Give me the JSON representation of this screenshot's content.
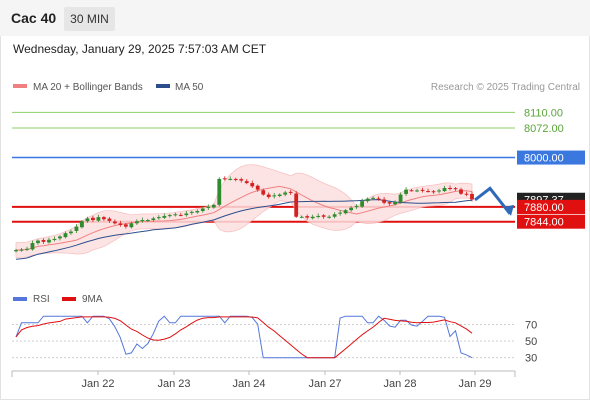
{
  "header": {
    "instrument": "Cac 40",
    "timeframe": "30 MIN",
    "timestamp": "Wednesday, January 29, 2025 7:57:03 AM CET"
  },
  "legend": {
    "ma20_label": "MA 20 + Bollinger Bands",
    "ma50_label": "MA 50",
    "credit": "Research © 2025 Trading Central",
    "rsi_label": "RSI",
    "ma9_label": "9MA"
  },
  "colors": {
    "candle_up": "#2e8b2e",
    "candle_down": "#d42020",
    "ma20": "#f08080",
    "ma50": "#2c4f8c",
    "bollinger_fill": "#fde0e0",
    "support": "#e01010",
    "resistance_blue": "#3a78e0",
    "target_green": "#8ccf6a",
    "last_price_bg": "#222222",
    "forecast_arrow": "#2f6ab8",
    "rsi": "#5577dd",
    "rsi_ma9": "#e01010"
  },
  "chart_data": [
    {
      "type": "candlestick",
      "title": "",
      "x_ticks": [
        "Jan 22",
        "Jan 23",
        "Jan 24",
        "Jan 27",
        "Jan 28",
        "Jan 29"
      ],
      "ylim": [
        7690,
        8140
      ],
      "horizontal_levels": [
        {
          "value": 8110.0,
          "label": "8110.00",
          "kind": "target"
        },
        {
          "value": 8072.0,
          "label": "8072.00",
          "kind": "target"
        },
        {
          "value": 8000.0,
          "label": "8000.00",
          "kind": "resistance"
        },
        {
          "value": 7880.0,
          "label": "7880.00",
          "kind": "support"
        },
        {
          "value": 7844.0,
          "label": "7844.00",
          "kind": "support"
        }
      ],
      "last_price": 7897.37,
      "last_price_label": "7897.37",
      "forecast": {
        "from": 7897,
        "peak": 7925,
        "to": 7863
      },
      "series": [
        {
          "name": "MA 20 + Bollinger Bands"
        },
        {
          "name": "MA 50"
        }
      ]
    },
    {
      "type": "line",
      "title": "",
      "y_ticks": [
        "70",
        "50",
        "30"
      ],
      "ylim": [
        20,
        85
      ],
      "series": [
        {
          "name": "RSI"
        },
        {
          "name": "9MA"
        }
      ]
    }
  ]
}
